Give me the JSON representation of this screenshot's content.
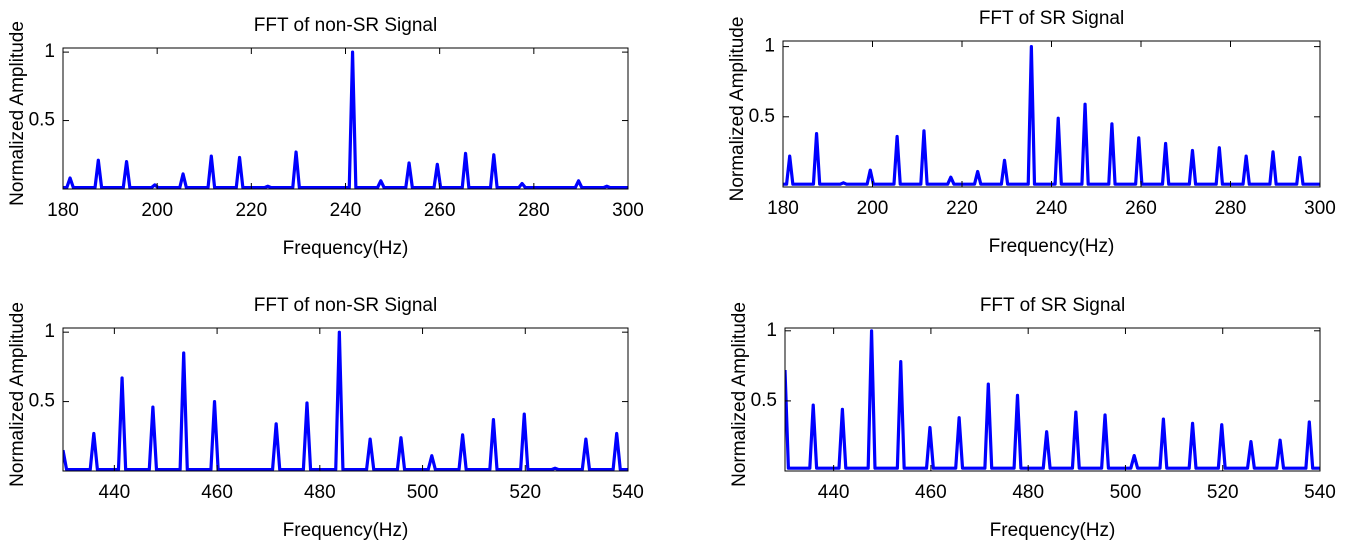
{
  "chart_data": [
    {
      "type": "line",
      "title": "FFT of non-SR Signal",
      "xlabel": "Frequency(Hz)",
      "ylabel": "Normalized Amplitude",
      "xlim": [
        180,
        300
      ],
      "xticks": [
        180,
        200,
        220,
        240,
        260,
        280,
        300
      ],
      "ylim": [
        0,
        1.03
      ],
      "yticks": [
        0.5,
        1
      ],
      "color": "#0000ff",
      "x": [
        180,
        180.8,
        181.5,
        182.2,
        186.8,
        187.5,
        188.2,
        192.8,
        193.5,
        194.2,
        198.8,
        199.5,
        200.2,
        204.8,
        205.5,
        206.2,
        210.8,
        211.5,
        212.2,
        216.8,
        217.5,
        218.2,
        222.8,
        223.5,
        224.2,
        228.8,
        229.5,
        230.2,
        240.8,
        241.5,
        242.2,
        246.8,
        247.5,
        248.2,
        252.8,
        253.5,
        254.2,
        258.8,
        259.5,
        260.2,
        264.8,
        265.5,
        266.2,
        270.8,
        271.5,
        272.2,
        276.8,
        277.5,
        278.2,
        288.8,
        289.5,
        290.2,
        294.8,
        295.5,
        296.2,
        300
      ],
      "values": [
        0.01,
        0.01,
        0.08,
        0.01,
        0.01,
        0.21,
        0.01,
        0.01,
        0.2,
        0.01,
        0.01,
        0.03,
        0.01,
        0.01,
        0.11,
        0.01,
        0.01,
        0.24,
        0.01,
        0.01,
        0.23,
        0.01,
        0.01,
        0.02,
        0.01,
        0.01,
        0.27,
        0.01,
        0.01,
        1,
        0.01,
        0.01,
        0.06,
        0.01,
        0.01,
        0.19,
        0.01,
        0.01,
        0.18,
        0.01,
        0.01,
        0.26,
        0.01,
        0.01,
        0.25,
        0.01,
        0.01,
        0.04,
        0.01,
        0.01,
        0.06,
        0.01,
        0.01,
        0.02,
        0.01,
        0.01
      ]
    },
    {
      "type": "line",
      "title": "FFT of SR Signal",
      "xlabel": "Frequency(Hz)",
      "ylabel": "Normalized Amplitude",
      "xlim": [
        180,
        300
      ],
      "xticks": [
        180,
        200,
        220,
        240,
        260,
        280,
        300
      ],
      "ylim": [
        0,
        1.04
      ],
      "yticks": [
        0.5,
        1
      ],
      "color": "#0000ff",
      "x": [
        180,
        180.8,
        181.5,
        182.2,
        186.8,
        187.5,
        188.2,
        192.8,
        193.5,
        194.2,
        198.8,
        199.5,
        200.2,
        204.8,
        205.5,
        206.2,
        210.8,
        211.5,
        212.2,
        216.8,
        217.5,
        218.2,
        222.8,
        223.5,
        224.2,
        228.8,
        229.5,
        230.2,
        234.8,
        235.5,
        236.2,
        240.8,
        241.5,
        242.2,
        246.8,
        247.5,
        248.2,
        252.8,
        253.5,
        254.2,
        258.8,
        259.5,
        260.2,
        264.8,
        265.5,
        266.2,
        270.8,
        271.5,
        272.2,
        276.8,
        277.5,
        278.2,
        282.8,
        283.5,
        284.2,
        288.8,
        289.5,
        290.2,
        294.8,
        295.5,
        296.2,
        300
      ],
      "values": [
        0.02,
        0.02,
        0.22,
        0.02,
        0.02,
        0.38,
        0.02,
        0.02,
        0.03,
        0.02,
        0.02,
        0.12,
        0.02,
        0.02,
        0.36,
        0.02,
        0.02,
        0.4,
        0.02,
        0.02,
        0.07,
        0.02,
        0.02,
        0.11,
        0.02,
        0.02,
        0.19,
        0.02,
        0.02,
        1,
        0.02,
        0.02,
        0.49,
        0.02,
        0.02,
        0.59,
        0.02,
        0.02,
        0.45,
        0.02,
        0.02,
        0.35,
        0.02,
        0.02,
        0.31,
        0.02,
        0.02,
        0.26,
        0.02,
        0.02,
        0.28,
        0.02,
        0.02,
        0.22,
        0.02,
        0.02,
        0.25,
        0.02,
        0.02,
        0.21,
        0.02,
        0.02
      ]
    },
    {
      "type": "line",
      "title": "FFT of non-SR Signal",
      "xlabel": "Frequency(Hz)",
      "ylabel": "Normalized Amplitude",
      "xlim": [
        430,
        540
      ],
      "xticks": [
        440,
        460,
        480,
        500,
        520,
        540
      ],
      "ylim": [
        0,
        1.03
      ],
      "yticks": [
        0.5,
        1
      ],
      "color": "#0000ff",
      "x": [
        430,
        430.7,
        435.3,
        436,
        436.7,
        440.8,
        441.5,
        442.2,
        446.8,
        447.5,
        448.2,
        452.8,
        453.5,
        454.2,
        458.8,
        459.5,
        460.2,
        470.8,
        471.5,
        472.2,
        476.8,
        477.5,
        478.2,
        483.1,
        483.8,
        484.5,
        489.1,
        489.8,
        490.5,
        495.1,
        495.8,
        496.5,
        501.1,
        501.8,
        502.5,
        507.1,
        507.8,
        508.5,
        513.1,
        513.8,
        514.5,
        519.1,
        519.8,
        520.5,
        525.1,
        525.8,
        526.5,
        531.1,
        531.8,
        532.5,
        537.1,
        537.8,
        538.5,
        540
      ],
      "values": [
        0.15,
        0.01,
        0.01,
        0.27,
        0.01,
        0.01,
        0.67,
        0.01,
        0.01,
        0.46,
        0.01,
        0.01,
        0.85,
        0.01,
        0.01,
        0.5,
        0.01,
        0.01,
        0.34,
        0.01,
        0.01,
        0.49,
        0.01,
        0.01,
        1,
        0.01,
        0.01,
        0.23,
        0.01,
        0.01,
        0.24,
        0.01,
        0.01,
        0.11,
        0.01,
        0.01,
        0.26,
        0.01,
        0.01,
        0.37,
        0.01,
        0.01,
        0.41,
        0.01,
        0.01,
        0.02,
        0.01,
        0.01,
        0.23,
        0.01,
        0.01,
        0.27,
        0.01,
        0.01
      ]
    },
    {
      "type": "line",
      "title": "FFT of SR Signal",
      "xlabel": "Frequency(Hz)",
      "ylabel": "Normalized Amplitude",
      "xlim": [
        430,
        540
      ],
      "xticks": [
        440,
        460,
        480,
        500,
        520,
        540
      ],
      "ylim": [
        0,
        1.02
      ],
      "yticks": [
        0.5,
        1
      ],
      "color": "#0000ff",
      "x": [
        430,
        430.7,
        435.1,
        435.8,
        436.5,
        441.1,
        441.8,
        442.5,
        447.1,
        447.8,
        448.5,
        453.1,
        453.8,
        454.5,
        459.1,
        459.8,
        460.5,
        465.1,
        465.8,
        466.5,
        471.1,
        471.8,
        472.5,
        477.1,
        477.8,
        478.5,
        483.1,
        483.8,
        484.5,
        489.1,
        489.8,
        490.5,
        495.1,
        495.8,
        496.5,
        501.1,
        501.8,
        502.5,
        507.1,
        507.8,
        508.5,
        513.1,
        513.8,
        514.5,
        519.1,
        519.8,
        520.5,
        525.1,
        525.8,
        526.5,
        531.1,
        531.8,
        532.5,
        537.1,
        537.8,
        538.5,
        540
      ],
      "values": [
        0.72,
        0.02,
        0.02,
        0.47,
        0.02,
        0.02,
        0.44,
        0.02,
        0.02,
        1,
        0.02,
        0.02,
        0.78,
        0.02,
        0.02,
        0.31,
        0.02,
        0.02,
        0.38,
        0.02,
        0.02,
        0.62,
        0.02,
        0.02,
        0.54,
        0.02,
        0.02,
        0.28,
        0.02,
        0.02,
        0.42,
        0.02,
        0.02,
        0.4,
        0.02,
        0.02,
        0.11,
        0.02,
        0.02,
        0.37,
        0.02,
        0.02,
        0.34,
        0.02,
        0.02,
        0.33,
        0.02,
        0.02,
        0.21,
        0.02,
        0.02,
        0.22,
        0.02,
        0.02,
        0.35,
        0.02,
        0.02
      ]
    }
  ]
}
